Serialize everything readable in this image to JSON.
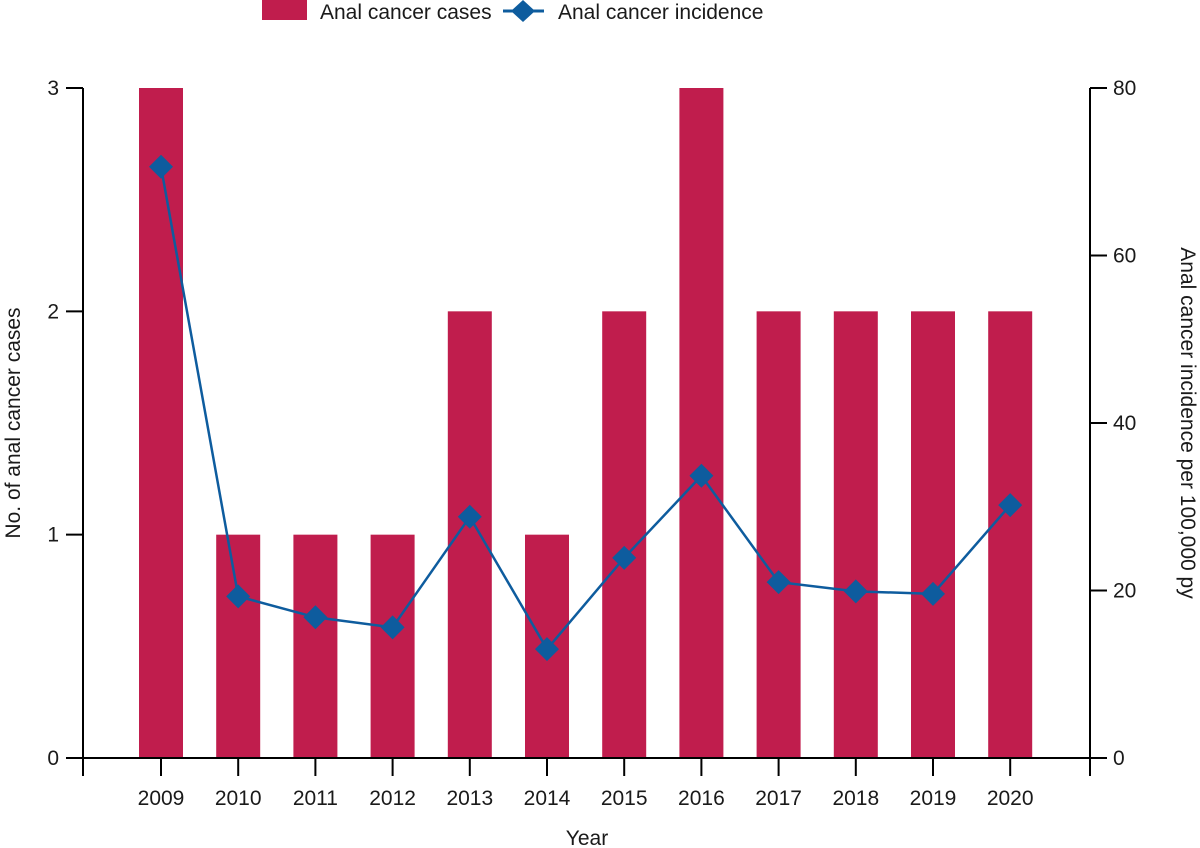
{
  "chart_data": {
    "type": "bar",
    "title": "",
    "xlabel": "Year",
    "ylabel": "No. of anal cancer cases",
    "y2label": "Anal cancer incidence per 100,000 py",
    "categories": [
      "2009",
      "2010",
      "2011",
      "2012",
      "2013",
      "2014",
      "2015",
      "2016",
      "2017",
      "2018",
      "2019",
      "2020"
    ],
    "ylim": [
      0,
      3
    ],
    "y_ticks": [
      0,
      1,
      2,
      3
    ],
    "y2lim": [
      0,
      80
    ],
    "y2_ticks": [
      0,
      20,
      40,
      60,
      80
    ],
    "grid": false,
    "legend_position": "top-center",
    "series": [
      {
        "name": "Anal cancer cases",
        "type": "bar",
        "axis": "left",
        "color": "#c01d4d",
        "values": [
          3,
          1,
          1,
          1,
          2,
          1,
          2,
          3,
          2,
          2,
          2,
          2
        ]
      },
      {
        "name": "Anal cancer incidence",
        "type": "line",
        "marker": "diamond",
        "axis": "right",
        "color": "#0e5c9e",
        "values": [
          70.6,
          19.3,
          16.8,
          15.6,
          28.8,
          13.0,
          23.9,
          33.7,
          21.0,
          19.9,
          19.6,
          30.2
        ]
      }
    ]
  }
}
